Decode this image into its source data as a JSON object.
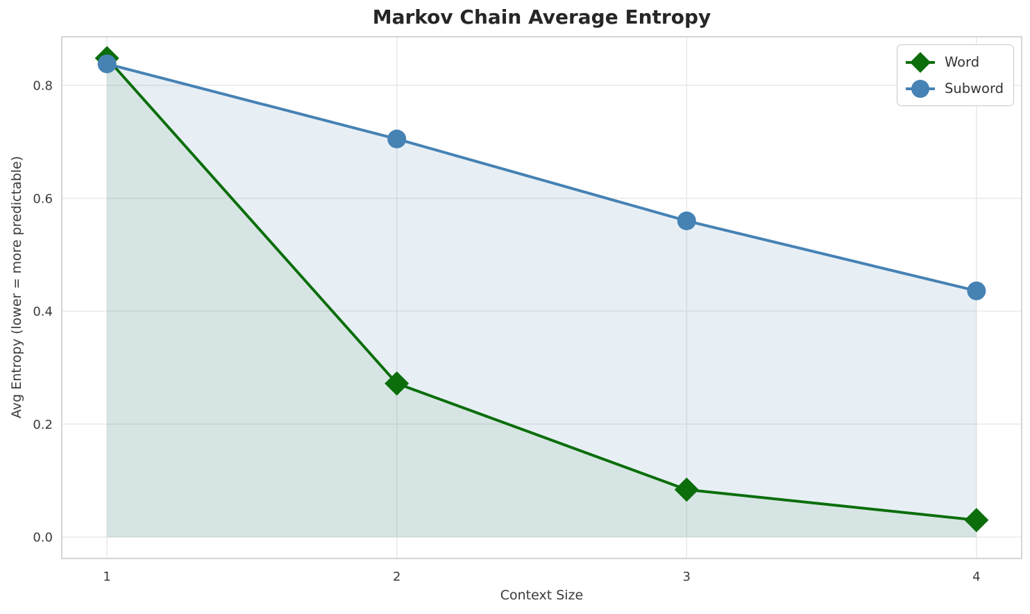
{
  "chart_data": {
    "type": "line",
    "title": "Markov Chain Average Entropy",
    "xlabel": "Context Size",
    "ylabel": "Avg Entropy (lower = more predictable)",
    "x": [
      1,
      2,
      3,
      4
    ],
    "series": [
      {
        "name": "Word",
        "values": [
          0.848,
          0.272,
          0.084,
          0.03
        ],
        "color": "#0b6e0b",
        "marker": "diamond",
        "fill_color": "rgba(0,100,0,0.07)"
      },
      {
        "name": "Subword",
        "values": [
          0.838,
          0.705,
          0.56,
          0.436
        ],
        "color": "#4682b4",
        "marker": "circle",
        "fill_color": "rgba(70,130,180,0.13)"
      }
    ],
    "fill_to": 0,
    "xticks": [
      "1",
      "2",
      "3",
      "4"
    ],
    "yticks": [
      "0.0",
      "0.2",
      "0.4",
      "0.6",
      "0.8"
    ],
    "xlim": [
      0.844,
      4.156
    ],
    "ylim": [
      -0.038,
      0.886
    ],
    "grid": true,
    "grid_color": "#e9e9e9",
    "spine_color": "#cbcbcb",
    "legend": {
      "position": "upper right",
      "entries": [
        "Word",
        "Subword"
      ]
    }
  }
}
